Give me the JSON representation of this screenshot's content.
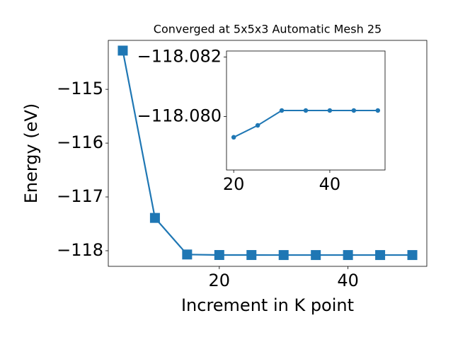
{
  "chart_data": [
    {
      "type": "line",
      "title": "Converged at 5x5x3 Automatic Mesh 25",
      "x_label": "Increment in K point",
      "y_label": "Energy (eV)",
      "x": [
        5,
        10,
        15,
        20,
        25,
        30,
        35,
        40,
        45,
        50
      ],
      "series": [
        {
          "color": "#1f77b4",
          "marker": "square",
          "values": [
            -114.28,
            -117.39,
            -118.07,
            -118.0793,
            -118.0797,
            -118.0802,
            -118.0802,
            -118.0802,
            -118.0802,
            -118.0802
          ]
        }
      ],
      "xlim": [
        2.75,
        52.25
      ],
      "ylim": [
        -118.29,
        -114.09
      ],
      "xticks": [
        20,
        40
      ],
      "yticks": [
        {
          "value": -115,
          "label": "−115"
        },
        {
          "value": -116,
          "label": "−116"
        },
        {
          "value": -117,
          "label": "−117"
        },
        {
          "value": -118,
          "label": "−118"
        }
      ]
    },
    {
      "type": "line",
      "x": [
        20,
        25,
        30,
        35,
        40,
        45,
        50
      ],
      "series": [
        {
          "color": "#1f77b4",
          "marker": "circle",
          "values": [
            -118.0793,
            -118.0797,
            -118.0802,
            -118.0802,
            -118.0802,
            -118.0802,
            -118.0802
          ]
        }
      ],
      "xlim": [
        18.5,
        51.5
      ],
      "ylim": [
        -118.0782,
        -118.0822
      ],
      "xticks": [
        20,
        40
      ],
      "yticks": [
        {
          "value": -118.082,
          "label": "−118.082"
        },
        {
          "value": -118.08,
          "label": "−118.080"
        }
      ]
    }
  ]
}
